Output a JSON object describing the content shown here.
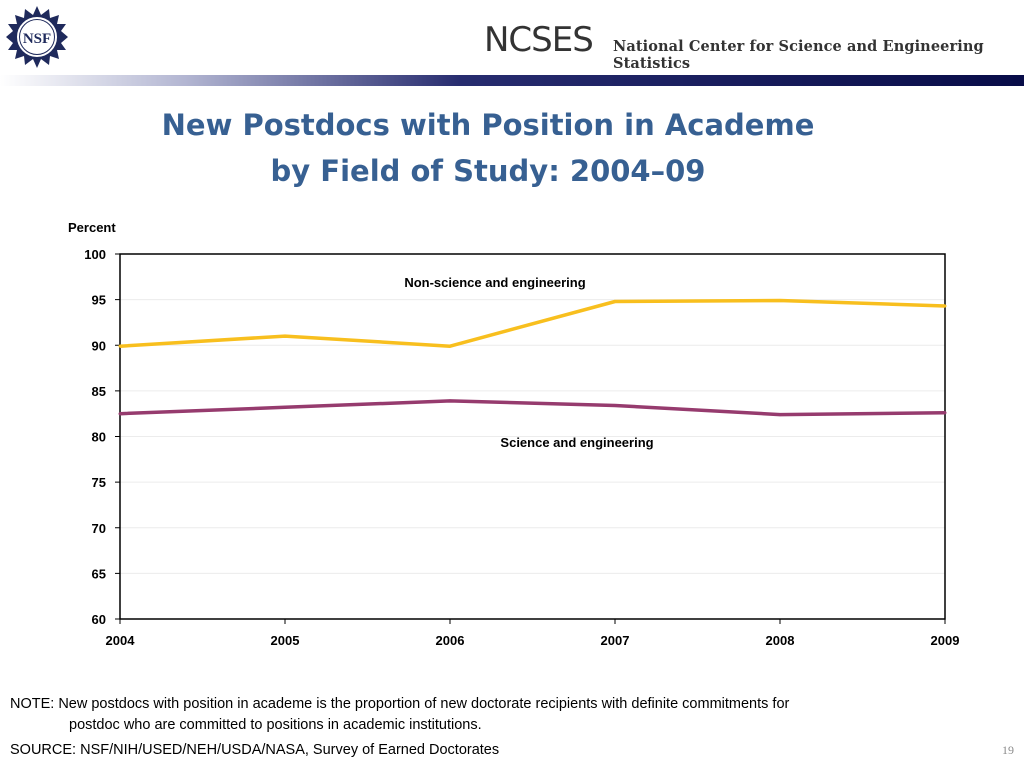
{
  "header": {
    "logo_text": "NSF",
    "wordmark": "NCSES",
    "org_name": "National Center for Science and Engineering Statistics"
  },
  "title": {
    "line1": "New Postdocs with Position in Academe",
    "line2": "by Field of Study: 2004–09"
  },
  "chart_data": {
    "type": "line",
    "title": "",
    "xlabel": "",
    "ylabel": "Percent",
    "categories": [
      "2004",
      "2005",
      "2006",
      "2007",
      "2008",
      "2009"
    ],
    "ylim": [
      60,
      100
    ],
    "yticks": [
      60,
      65,
      70,
      75,
      80,
      85,
      90,
      95,
      100
    ],
    "grid": true,
    "legend": "none",
    "series": [
      {
        "name": "Non-science and engineering",
        "color": "#f8bf1e",
        "values": [
          89.9,
          91.0,
          89.9,
          94.8,
          94.9,
          94.3
        ]
      },
      {
        "name": "Science and engineering",
        "color": "#963b6e",
        "values": [
          82.5,
          83.2,
          83.9,
          83.4,
          82.4,
          82.6
        ]
      }
    ]
  },
  "note": {
    "line1": "NOTE: New postdocs with position in academe is the proportion of new doctorate recipients with definite commitments for",
    "line2": "postdoc who are committed to positions in academic institutions."
  },
  "source": "SOURCE:  NSF/NIH/USED/NEH/USDA/NASA, Survey of Earned Doctorates",
  "slide_number": "19"
}
